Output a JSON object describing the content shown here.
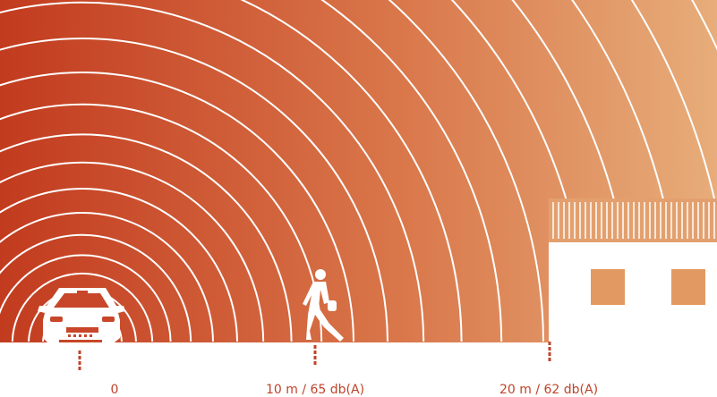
{
  "colors": {
    "gradient_start": "#c23b1f",
    "gradient_mid": "#d9764a",
    "gradient_end": "#e7ad7a",
    "rings": "#ffffff",
    "marker": "#c0432a",
    "window": "#e39a62"
  },
  "icons": {
    "car": "car-front-icon",
    "pedestrian": "walking-person-icon",
    "building": "house-icon"
  },
  "labels": {
    "source": "0",
    "pedestrian": "10 m / 65 db(A)",
    "building": "20 m / 62 db(A)"
  }
}
